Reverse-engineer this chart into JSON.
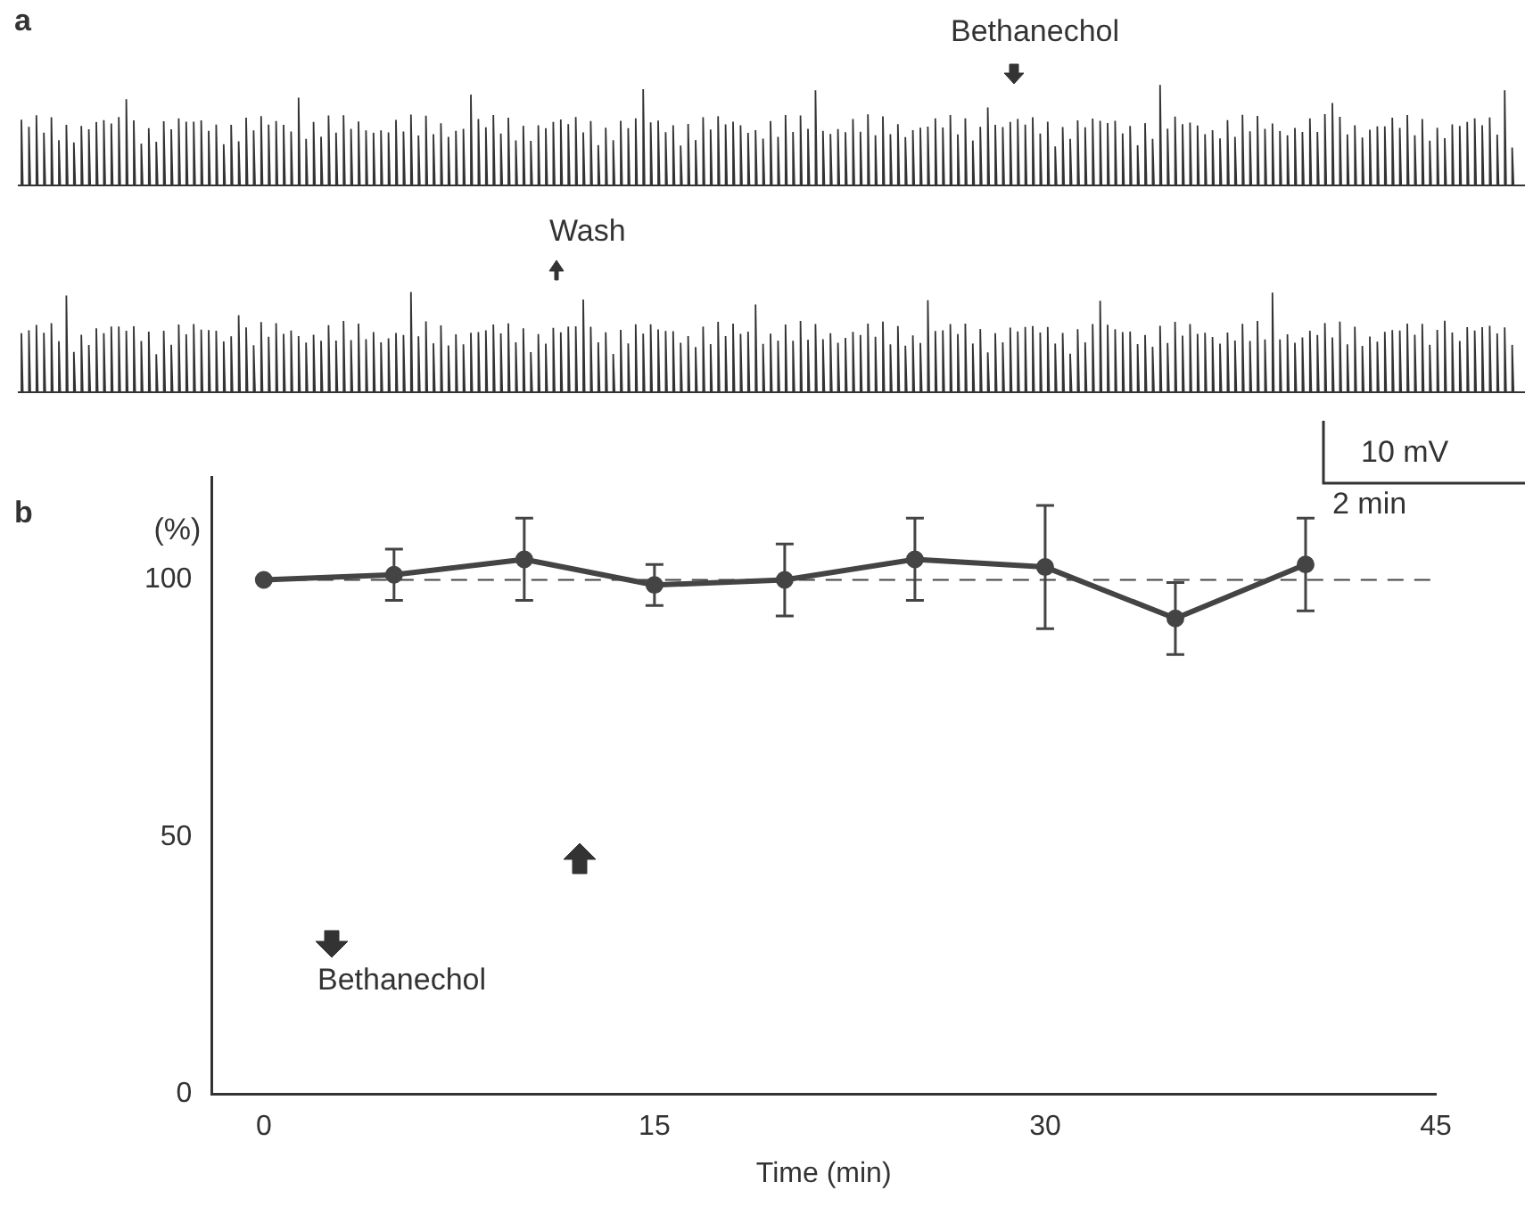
{
  "chart_data": {
    "type": "line",
    "xlabel": "Time (min)",
    "ylabel": "(%)",
    "x": [
      0,
      5,
      10,
      15,
      20,
      25,
      30,
      35,
      40
    ],
    "series": [
      {
        "color": "#444444",
        "values": [
          100,
          101,
          104,
          99,
          100,
          104,
          102.5,
          92.5,
          103
        ],
        "errors": [
          null,
          5,
          8,
          4,
          7,
          8,
          12,
          7,
          9
        ]
      }
    ],
    "xlim": [
      -2,
      45
    ],
    "xticks": [
      0,
      15,
      30,
      45
    ],
    "ylim": [
      0,
      120
    ],
    "yticks": [
      0,
      50,
      100
    ],
    "ref_lines": [
      {
        "axis": "y",
        "value": 100,
        "line_style": "dashed",
        "color": "#444444"
      }
    ],
    "marker": "circle",
    "line_style": "solid",
    "grid": false,
    "legend": false,
    "annotations": [
      "a",
      "Bethanechol",
      "Wash",
      "10 mV",
      "2 min",
      "b",
      "Bethanechol"
    ]
  }
}
